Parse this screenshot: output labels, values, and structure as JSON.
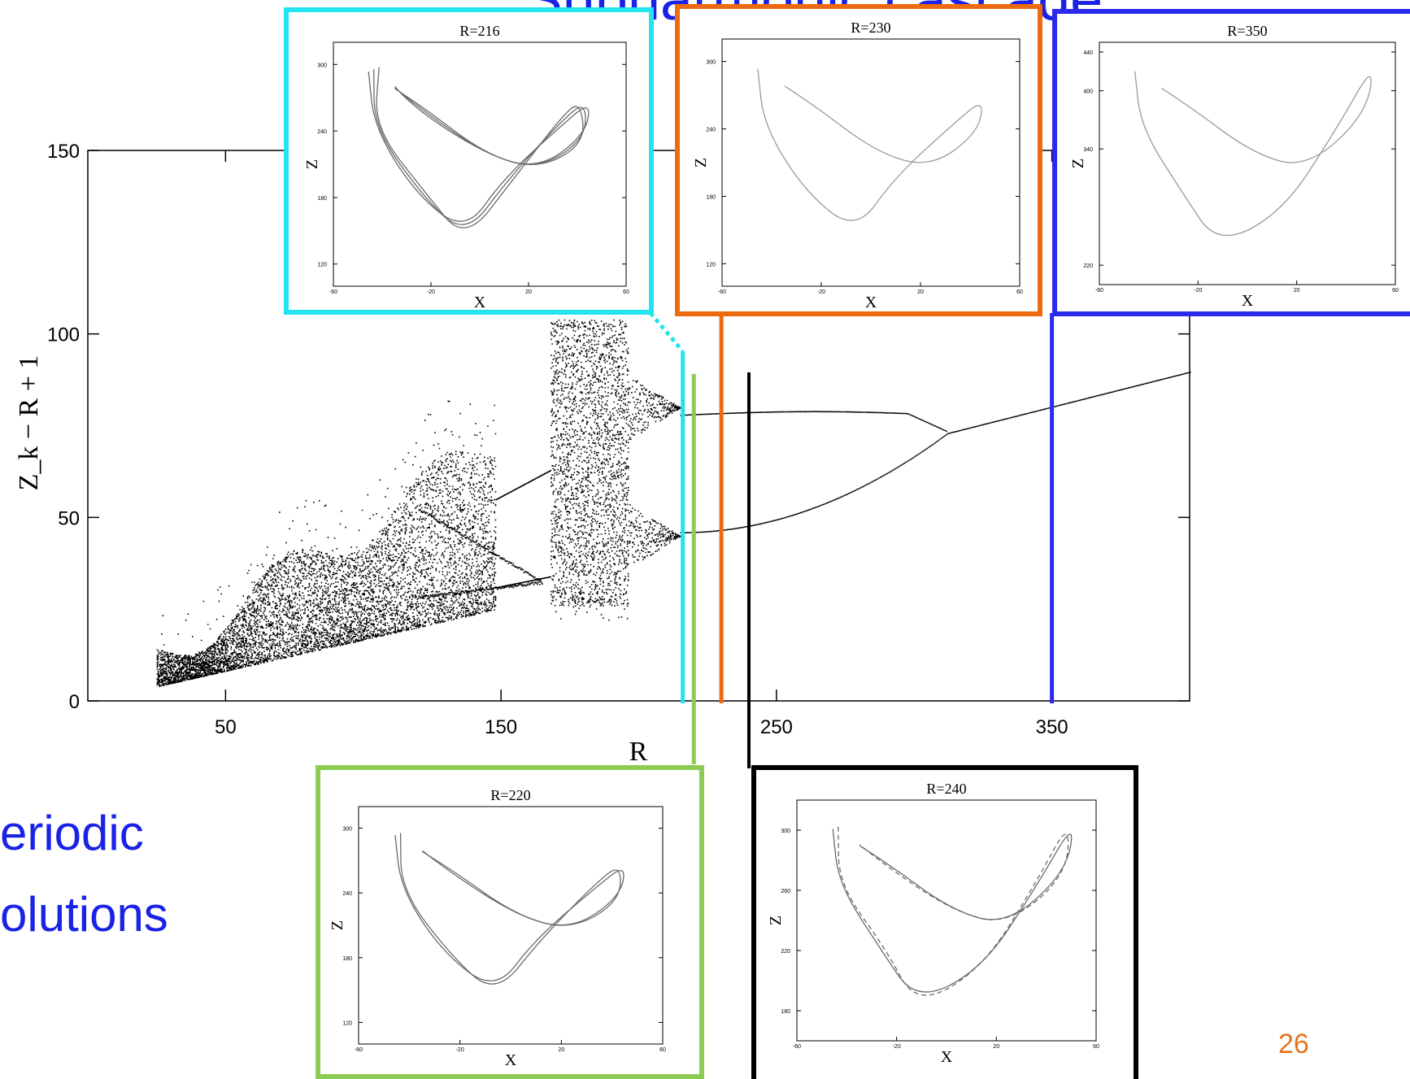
{
  "slide": {
    "title_partial": "Subharmonic cascade",
    "left_text_line1": "eriodic",
    "left_text_line2": "olutions",
    "page_number": "26"
  },
  "colors": {
    "cyan": "#22e3ee",
    "orange": "#ee6a10",
    "blue": "#2a2aee",
    "green": "#8ccc54",
    "black": "#000000",
    "text_blue": "#1a22e6",
    "page_number": "#e8731e"
  },
  "chart_data": [
    {
      "type": "scatter",
      "title": "",
      "xlabel": "R",
      "ylabel": "Z_k − R + 1",
      "xlim": [
        0,
        400
      ],
      "ylim": [
        0,
        150
      ],
      "xticks": [
        50,
        150,
        250,
        350
      ],
      "yticks": [
        0,
        50,
        100,
        150
      ],
      "xtick_labels": [
        "50",
        "150",
        "250",
        "350"
      ],
      "ytick_labels": [
        "0",
        "50",
        "100",
        "150"
      ],
      "description": "bifurcation diagram of Z_k − R + 1 against R",
      "branches": [
        {
          "name": "",
          "x": [
            213,
            225,
            240,
            260,
            290,
            310,
            340,
            370,
            400
          ],
          "y": [
            78,
            78.5,
            79,
            79,
            78.5,
            75,
            78,
            84,
            90
          ]
        },
        {
          "name": "",
          "x": [
            213,
            230,
            250,
            270,
            290,
            310
          ],
          "y": [
            46,
            48,
            52,
            58,
            65,
            72
          ]
        }
      ],
      "markers": [
        {
          "R": 216,
          "color": "cyan"
        },
        {
          "R": 220,
          "color": "green"
        },
        {
          "R": 230,
          "color": "orange"
        },
        {
          "R": 240,
          "color": "black"
        },
        {
          "R": 350,
          "color": "blue"
        }
      ]
    },
    {
      "type": "line",
      "title": "R=216",
      "xlabel": "X",
      "ylabel": "Z",
      "xlim": [
        -60,
        60
      ],
      "ylim": [
        100,
        320
      ],
      "xticks": [
        -60,
        -20,
        20,
        60
      ],
      "yticks": [
        120,
        180,
        240,
        300
      ],
      "xtick_labels": [
        "-60",
        "-20",
        "20",
        "60"
      ],
      "ytick_labels": [
        "120",
        "180",
        "240",
        "300"
      ],
      "loops": 3
    },
    {
      "type": "line",
      "title": "R=230",
      "xlabel": "X",
      "ylabel": "Z",
      "xlim": [
        -60,
        60
      ],
      "ylim": [
        100,
        320
      ],
      "xticks": [
        -60,
        -20,
        20,
        60
      ],
      "yticks": [
        120,
        180,
        240,
        300
      ],
      "xtick_labels": [
        "-60",
        "-20",
        "20",
        "60"
      ],
      "ytick_labels": [
        "120",
        "180",
        "240",
        "300"
      ],
      "loops": 1
    },
    {
      "type": "line",
      "title": "R=350",
      "xlabel": "X",
      "ylabel": "Z",
      "xlim": [
        -60,
        60
      ],
      "ylim": [
        200,
        450
      ],
      "xticks": [
        -60,
        -20,
        20,
        60
      ],
      "yticks": [
        220,
        340,
        400,
        440
      ],
      "xtick_labels": [
        "-60",
        "-20",
        "20",
        "60"
      ],
      "ytick_labels": [
        "220",
        "340",
        "400",
        "440"
      ],
      "loops": 1
    },
    {
      "type": "line",
      "title": "R=220",
      "xlabel": "X",
      "ylabel": "Z",
      "xlim": [
        -60,
        60
      ],
      "ylim": [
        100,
        320
      ],
      "xticks": [
        -60,
        -20,
        20,
        60
      ],
      "yticks": [
        120,
        180,
        240,
        300
      ],
      "xtick_labels": [
        "-60",
        "-20",
        "20",
        "60"
      ],
      "ytick_labels": [
        "120",
        "180",
        "240",
        "300"
      ],
      "loops": 2
    },
    {
      "type": "line",
      "title": "R=240",
      "xlabel": "X",
      "ylabel": "Z",
      "xlim": [
        -60,
        60
      ],
      "ylim": [
        160,
        320
      ],
      "xticks": [
        -60,
        -20,
        20,
        60
      ],
      "yticks": [
        180,
        220,
        260,
        300
      ],
      "xtick_labels": [
        "-60",
        "-20",
        "20",
        "60"
      ],
      "ytick_labels": [
        "180",
        "220",
        "260",
        "300"
      ],
      "loops": 2
    }
  ]
}
